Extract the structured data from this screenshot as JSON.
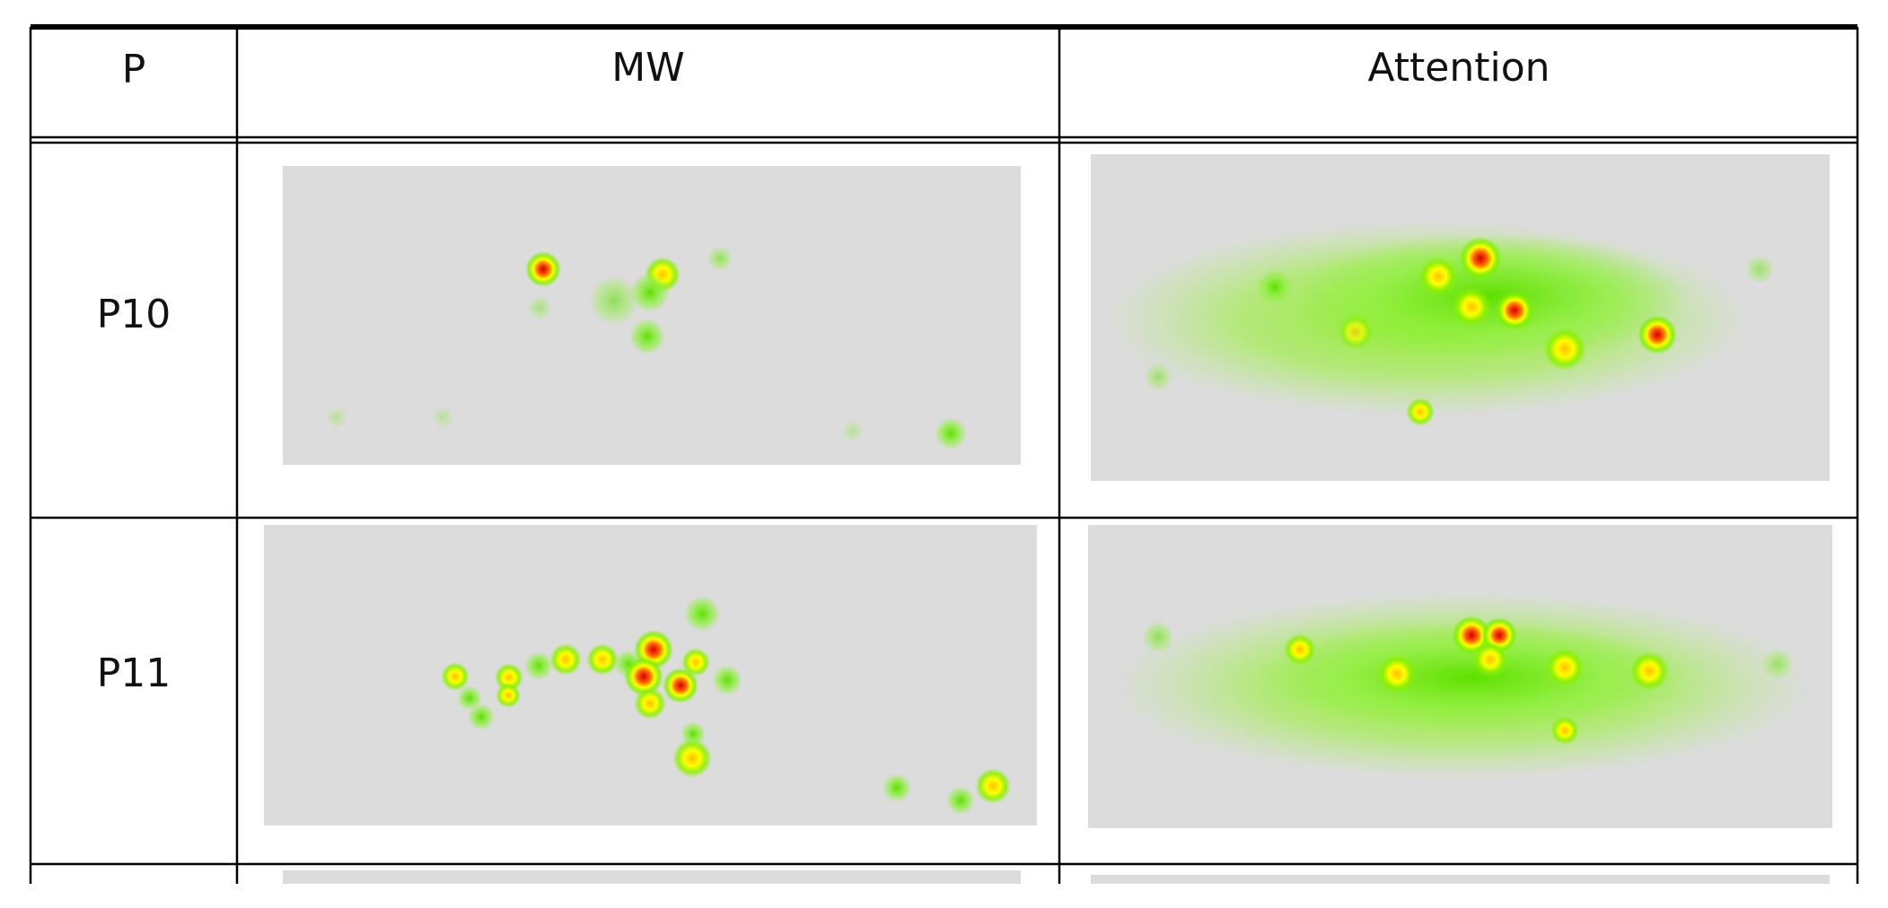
{
  "table": {
    "header": [
      "P",
      "MW",
      "Attention"
    ],
    "rows": [
      [
        "P10"
      ],
      [
        "P11"
      ]
    ]
  }
}
